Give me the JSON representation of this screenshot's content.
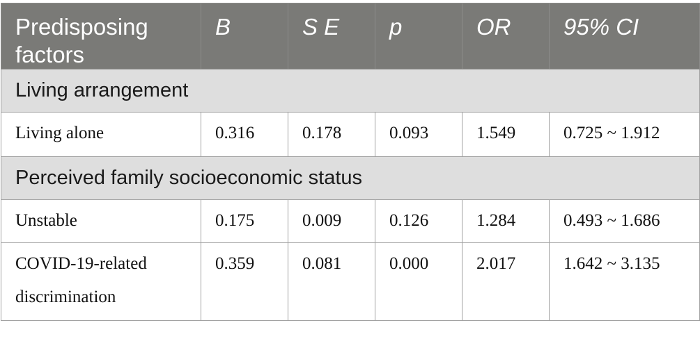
{
  "headers": [
    "Predisposing factors",
    "B",
    "S E",
    "p",
    "OR",
    "95% CI"
  ],
  "sections": [
    {
      "title": "Living arrangement",
      "rows": [
        {
          "factor": "Living alone",
          "B": "0.316",
          "SE": "0.178",
          "p": "0.093",
          "OR": "1.549",
          "CI": "0.725 ~ 1.912"
        }
      ]
    },
    {
      "title": "Perceived family socioeconomic status",
      "rows": [
        {
          "factor": "Unstable",
          "B": "0.175",
          "SE": "0.009",
          "p": "0.126",
          "OR": "1.284",
          "CI": "0.493 ~ 1.686"
        },
        {
          "factor": "COVID-19-related discrimination",
          "B": "0.359",
          "SE": "0.081",
          "p": "0.000",
          "OR": "2.017",
          "CI": "1.642 ~ 3.135"
        }
      ]
    }
  ]
}
